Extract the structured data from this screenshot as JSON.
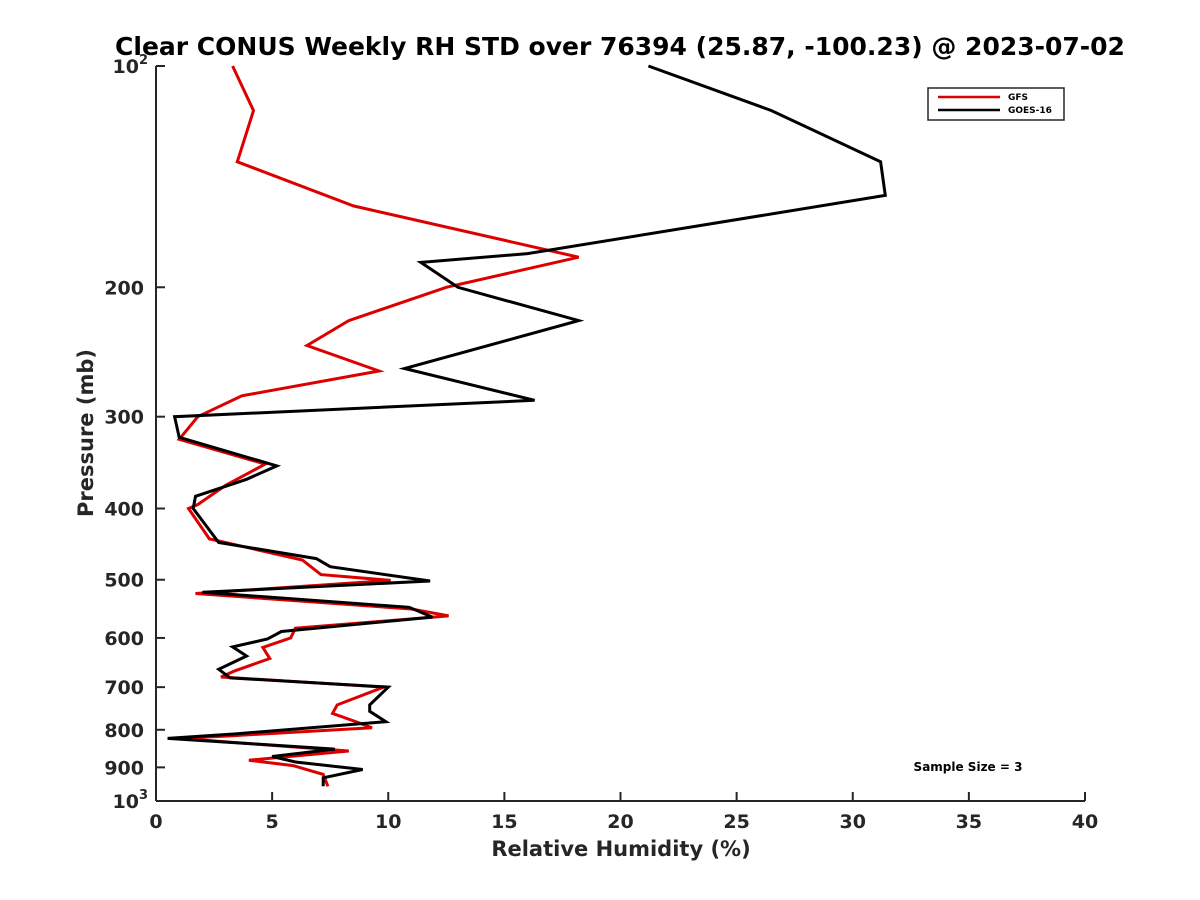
{
  "chart_data": {
    "type": "line",
    "title": "Clear CONUS Weekly RH STD over 76394 (25.87, -100.23) @ 2023-07-02",
    "xlabel": "Relative Humidity (%)",
    "ylabel": "Pressure (mb)",
    "xlim": [
      0,
      40
    ],
    "ylim": [
      100,
      1000
    ],
    "yscale": "log",
    "y_reversed": true,
    "grid": false,
    "legend_position": "top-right",
    "x_ticks": [
      "0",
      "5",
      "10",
      "15",
      "20",
      "25",
      "30",
      "35",
      "40"
    ],
    "y_ticks": [
      {
        "value": 100,
        "base": "10",
        "exp": "2"
      },
      {
        "value": 200,
        "label": "200"
      },
      {
        "value": 300,
        "label": "300"
      },
      {
        "value": 400,
        "label": "400"
      },
      {
        "value": 500,
        "label": "500"
      },
      {
        "value": 600,
        "label": "600"
      },
      {
        "value": 700,
        "label": "700"
      },
      {
        "value": 800,
        "label": "800"
      },
      {
        "value": 900,
        "label": "900"
      },
      {
        "value": 1000,
        "base": "10",
        "exp": "3"
      }
    ],
    "annotation": "Sample Size = 3",
    "series": [
      {
        "name": "GFS",
        "color": "#dd0000",
        "points": [
          [
            3.3,
            100
          ],
          [
            4.2,
            115
          ],
          [
            3.5,
            135
          ],
          [
            8.5,
            155
          ],
          [
            18.2,
            182
          ],
          [
            12.5,
            200
          ],
          [
            8.3,
            222
          ],
          [
            6.5,
            240
          ],
          [
            9.6,
            260
          ],
          [
            3.7,
            281
          ],
          [
            1.8,
            300
          ],
          [
            1.0,
            322
          ],
          [
            4.7,
            348
          ],
          [
            3.0,
            372
          ],
          [
            1.8,
            395
          ],
          [
            1.4,
            400
          ],
          [
            2.3,
            440
          ],
          [
            6.3,
            470
          ],
          [
            7.1,
            492
          ],
          [
            10.1,
            501
          ],
          [
            1.7,
            522
          ],
          [
            11.0,
            548
          ],
          [
            12.6,
            560
          ],
          [
            6.0,
            582
          ],
          [
            5.8,
            600
          ],
          [
            4.6,
            618
          ],
          [
            4.9,
            640
          ],
          [
            3.4,
            665
          ],
          [
            2.8,
            678
          ],
          [
            9.8,
            700
          ],
          [
            7.8,
            740
          ],
          [
            7.6,
            760
          ],
          [
            8.7,
            782
          ],
          [
            9.3,
            795
          ],
          [
            3.3,
            815
          ],
          [
            1.0,
            822
          ],
          [
            8.3,
            855
          ],
          [
            4.0,
            880
          ],
          [
            5.9,
            895
          ],
          [
            7.2,
            920
          ],
          [
            7.4,
            955
          ]
        ]
      },
      {
        "name": "GOES-16",
        "color": "#000000",
        "points": [
          [
            21.2,
            100
          ],
          [
            26.5,
            115
          ],
          [
            31.2,
            135
          ],
          [
            31.4,
            150
          ],
          [
            16.0,
            180
          ],
          [
            11.4,
            185
          ],
          [
            13.0,
            200
          ],
          [
            18.2,
            222
          ],
          [
            10.7,
            258
          ],
          [
            16.3,
            285
          ],
          [
            0.8,
            300
          ],
          [
            1.0,
            320
          ],
          [
            5.2,
            350
          ],
          [
            3.9,
            365
          ],
          [
            1.7,
            385
          ],
          [
            1.6,
            400
          ],
          [
            2.7,
            445
          ],
          [
            6.9,
            468
          ],
          [
            7.5,
            480
          ],
          [
            11.8,
            502
          ],
          [
            2.0,
            520
          ],
          [
            10.9,
            545
          ],
          [
            11.9,
            562
          ],
          [
            5.4,
            588
          ],
          [
            4.8,
            602
          ],
          [
            3.3,
            617
          ],
          [
            3.9,
            635
          ],
          [
            2.7,
            662
          ],
          [
            3.2,
            680
          ],
          [
            10.0,
            700
          ],
          [
            9.2,
            740
          ],
          [
            9.2,
            755
          ],
          [
            9.9,
            780
          ],
          [
            3.5,
            810
          ],
          [
            0.5,
            822
          ],
          [
            7.7,
            850
          ],
          [
            5.0,
            870
          ],
          [
            6.0,
            885
          ],
          [
            8.9,
            906
          ],
          [
            7.2,
            930
          ],
          [
            7.2,
            955
          ]
        ]
      }
    ]
  }
}
